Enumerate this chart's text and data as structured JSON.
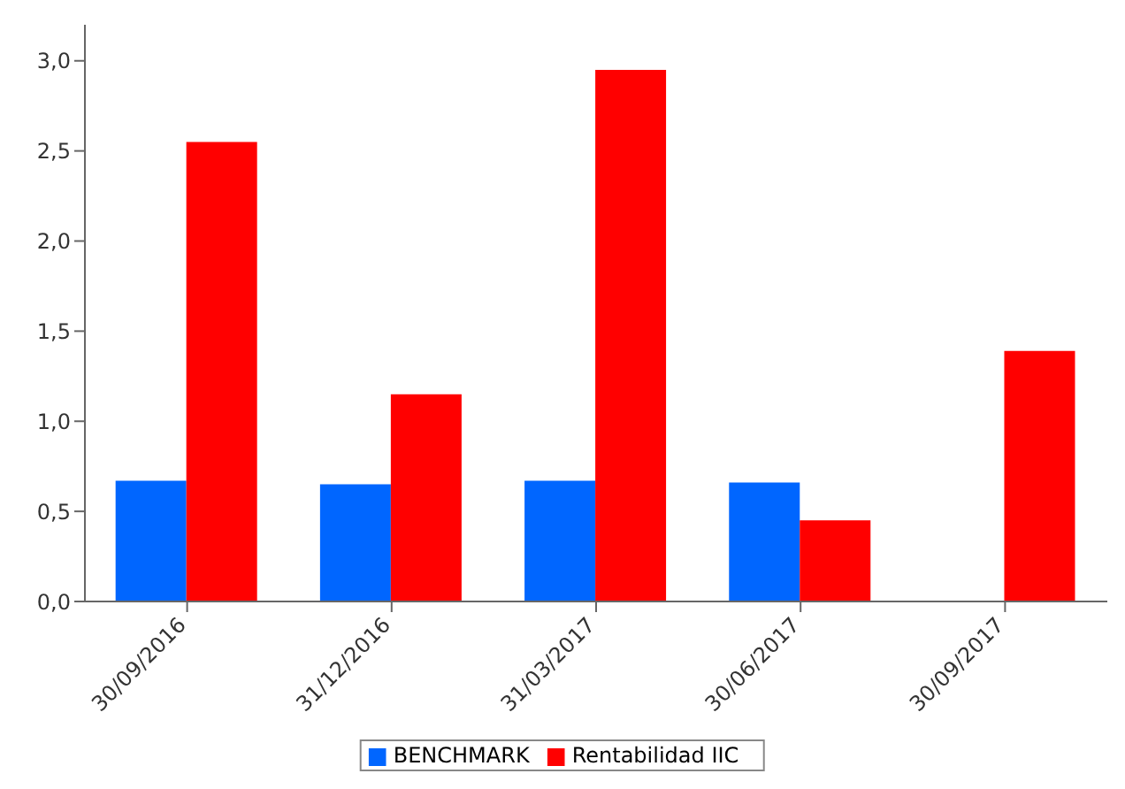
{
  "chart_data": {
    "type": "bar",
    "categories": [
      "30/09/2016",
      "31/12/2016",
      "31/03/2017",
      "30/06/2017",
      "30/09/2017"
    ],
    "series": [
      {
        "name": "BENCHMARK",
        "color": "#0066ff",
        "values": [
          0.67,
          0.65,
          0.67,
          0.66,
          null
        ]
      },
      {
        "name": "Rentabilidad IIC",
        "color": "#ff0000",
        "values": [
          2.55,
          1.15,
          2.95,
          0.45,
          1.39
        ]
      }
    ],
    "ylim": [
      0,
      3.2
    ],
    "yticks": [
      {
        "value": 0,
        "label": "0,0"
      },
      {
        "value": 0.5,
        "label": "0,5"
      },
      {
        "value": 1,
        "label": "1,0"
      },
      {
        "value": 1.5,
        "label": "1,5"
      },
      {
        "value": 2,
        "label": "2,0"
      },
      {
        "value": 2.5,
        "label": "2,5"
      },
      {
        "value": 3,
        "label": "3,0"
      }
    ],
    "grid": false,
    "legend": "bottom"
  }
}
